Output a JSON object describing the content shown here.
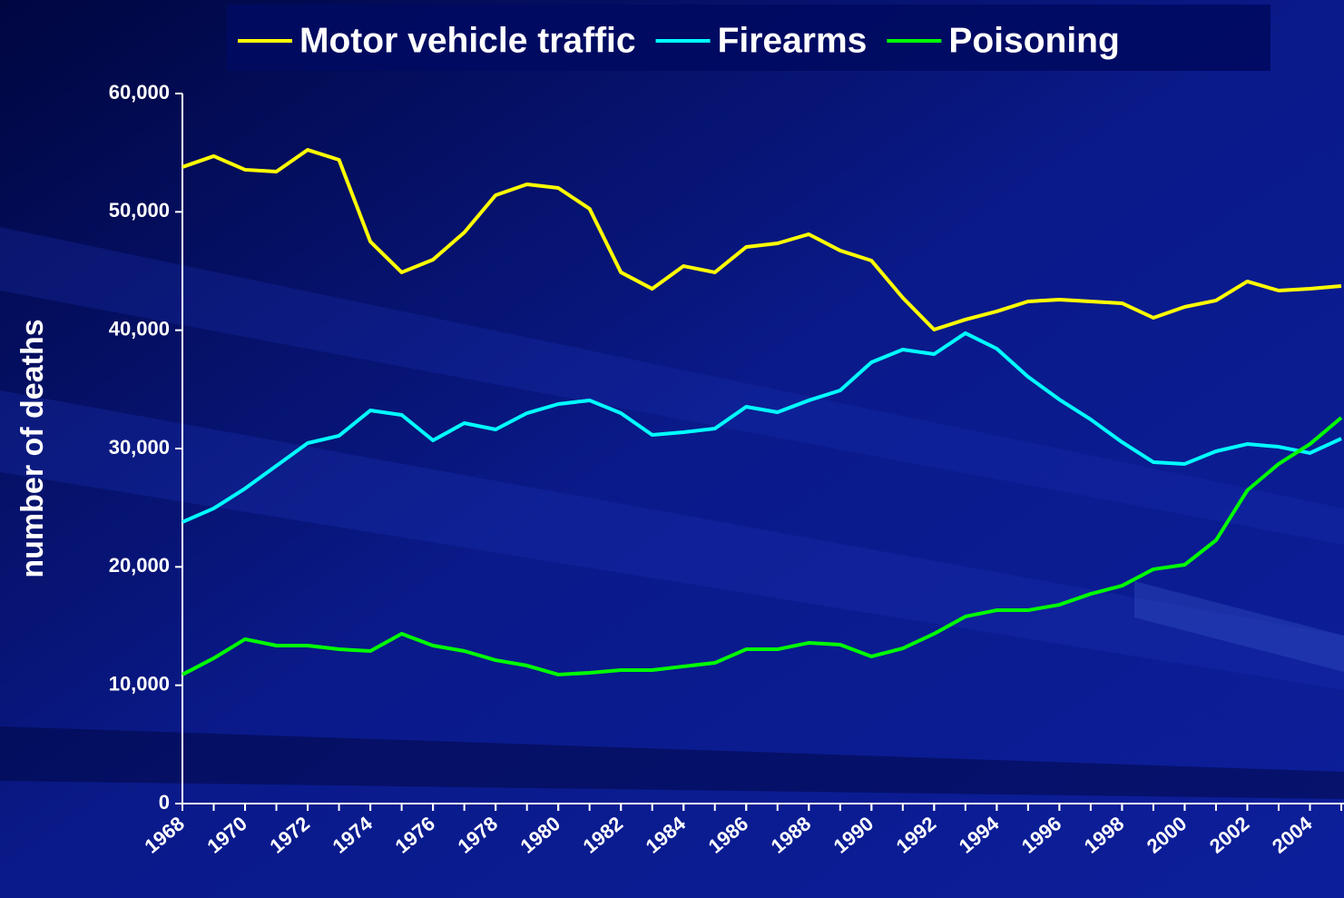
{
  "chart_data": {
    "type": "line",
    "ylabel": "number of deaths",
    "x": [
      1968,
      1969,
      1970,
      1971,
      1972,
      1973,
      1974,
      1975,
      1976,
      1977,
      1978,
      1979,
      1980,
      1981,
      1982,
      1983,
      1984,
      1985,
      1986,
      1987,
      1988,
      1989,
      1990,
      1991,
      1992,
      1993,
      1994,
      1995,
      1996,
      1997,
      1998,
      1999,
      2000,
      2001,
      2002,
      2003,
      2004,
      2005
    ],
    "series": [
      {
        "name": "Motor vehicle traffic",
        "color": "#ffff00",
        "values": [
          53790,
          54710,
          53560,
          53400,
          55240,
          54400,
          47490,
          44890,
          45960,
          48260,
          51410,
          52330,
          52020,
          50260,
          44890,
          43500,
          45420,
          44890,
          47030,
          47340,
          48110,
          46730,
          45880,
          42740,
          40050,
          40900,
          41590,
          42430,
          42580,
          42430,
          42280,
          41050,
          41970,
          42510,
          44120,
          43350,
          43500,
          43730
        ]
      },
      {
        "name": "Firearms",
        "color": "#00ffff",
        "values": [
          23790,
          24940,
          26620,
          28540,
          30460,
          31080,
          33220,
          32840,
          30690,
          32150,
          31610,
          32990,
          33760,
          34070,
          32990,
          31150,
          31380,
          31690,
          33530,
          33070,
          34070,
          34910,
          37290,
          38360,
          37980,
          39750,
          38440,
          36060,
          34140,
          32460,
          30540,
          28850,
          28700,
          29770,
          30380,
          30150,
          29620,
          30840
        ]
      },
      {
        "name": "Poisoning",
        "color": "#00ff00",
        "values": [
          10900,
          12280,
          13890,
          13350,
          13350,
          13040,
          12890,
          14350,
          13350,
          12890,
          12120,
          11660,
          10900,
          11050,
          11280,
          11280,
          11590,
          11890,
          13040,
          13040,
          13580,
          13430,
          12430,
          13120,
          14350,
          15810,
          16340,
          16340,
          16800,
          17720,
          18410,
          19800,
          20180,
          22250,
          26470,
          28700,
          30380,
          32610
        ]
      }
    ],
    "xlim": [
      1968,
      2005
    ],
    "xticks": [
      1968,
      1970,
      1972,
      1974,
      1976,
      1978,
      1980,
      1982,
      1984,
      1986,
      1988,
      1990,
      1992,
      1994,
      1996,
      1998,
      2000,
      2002,
      2004
    ],
    "ylim": [
      0,
      60000
    ],
    "yticks": [
      0,
      {
        "value": 10000,
        "label": "10,000"
      },
      {
        "value": 20000,
        "label": "20,000"
      },
      {
        "value": 30000,
        "label": "30,000"
      },
      {
        "value": 40000,
        "label": "40,000"
      },
      {
        "value": 50000,
        "label": "50,000"
      },
      {
        "value": 60000,
        "label": "60,000"
      }
    ],
    "legend": "top"
  }
}
